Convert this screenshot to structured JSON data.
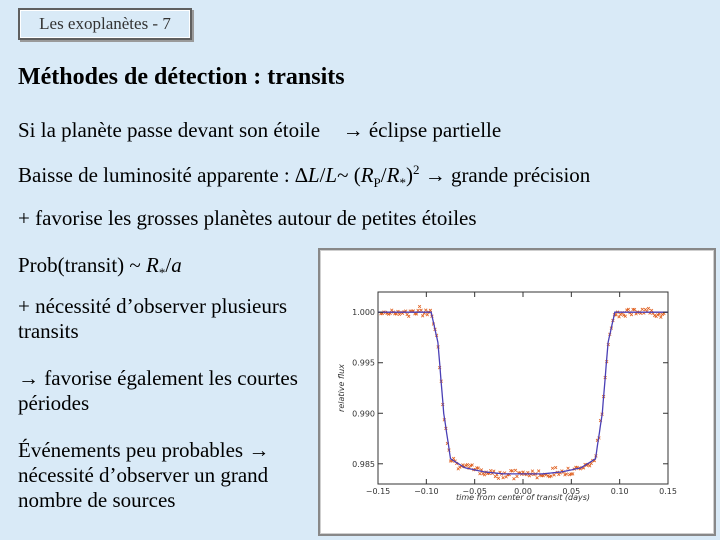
{
  "header": {
    "label": "Les exoplanètes - 7"
  },
  "title": "Méthodes de détection : transits",
  "lines": {
    "l1a": "Si la planète passe devant son étoile",
    "l1b": "→ éclipse partielle",
    "l2_prefix": "Baisse de luminosité apparente : ",
    "l2_delta": "∆",
    "l2_L1": "L",
    "l2_slash": "/",
    "l2_L2": "L",
    "l2_tilde": "~ (",
    "l2_R1": "R",
    "l2_sub1": "P",
    "l2_slash2": "/",
    "l2_R2": "R",
    "l2_sub2": "*",
    "l2_close": ")",
    "l2_sup": "2",
    "l2_suffix": " → grande précision",
    "l3": "+ favorise les grosses planètes autour de petites étoiles",
    "l4_prefix": "Prob(transit) ~ ",
    "l4_R": "R",
    "l4_sub": "*",
    "l4_slash": "/",
    "l4_a": "a"
  },
  "paras": {
    "p1": "+ nécessité d’observer plusieurs transits",
    "p2": "→ favorise également les courtes périodes",
    "p3": "Événements peu probables → nécessité d’observer un grand nombre de sources"
  },
  "chart_data": {
    "type": "scatter",
    "xlabel": "time from center of transit (days)",
    "ylabel": "relative flux",
    "xlim": [
      -0.15,
      0.15
    ],
    "ylim": [
      0.983,
      1.002
    ],
    "x_ticks": [
      "−0.15",
      "−0.10",
      "−0.05",
      "0.00",
      "0.05",
      "0.10",
      "0.15"
    ],
    "y_ticks": [
      "1.000",
      "0.995",
      "0.990",
      "0.985"
    ],
    "y_tick_values": [
      1.0,
      0.995,
      0.99,
      0.985
    ],
    "x_tick_values": [
      -0.15,
      -0.1,
      -0.05,
      0.0,
      0.05,
      0.1,
      0.15
    ],
    "model": {
      "x": [
        -0.15,
        -0.095,
        -0.088,
        -0.082,
        -0.075,
        -0.06,
        -0.04,
        -0.02,
        0.0,
        0.02,
        0.04,
        0.06,
        0.075,
        0.082,
        0.088,
        0.095,
        0.15
      ],
      "y": [
        1.0,
        1.0,
        0.997,
        0.99,
        0.9855,
        0.9846,
        0.9842,
        0.984,
        0.984,
        0.984,
        0.9842,
        0.9846,
        0.9855,
        0.99,
        0.997,
        1.0,
        1.0
      ]
    },
    "colors": {
      "data": "#e06020",
      "model": "#4a3fb5"
    }
  }
}
